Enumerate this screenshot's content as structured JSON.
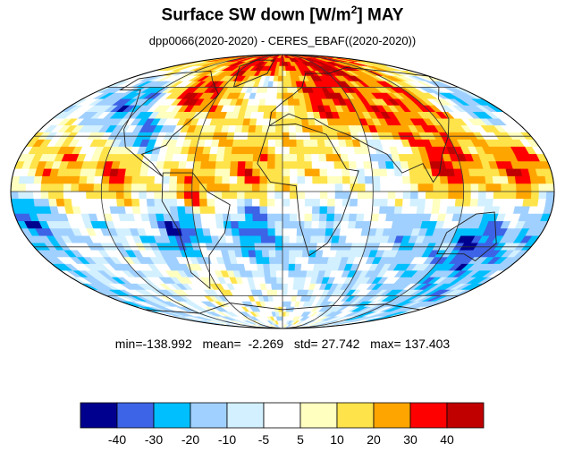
{
  "title": {
    "main": "Surface SW down [W/m",
    "sup": "2",
    "tail": "]  MAY"
  },
  "subtitle": "dpp0066(2020-2020) - CERES_EBAF((2020-2020))",
  "stats": {
    "min_label": "min=",
    "min": "-138.992",
    "mean_label": "mean=",
    "mean": "-2.269",
    "std_label": "std=",
    "std": "27.742",
    "max_label": "max=",
    "max": "137.403"
  },
  "chart_data": {
    "type": "heatmap",
    "projection": "mollweide",
    "variable": "Surface SW down difference",
    "units": "W/m2",
    "month": "MAY",
    "grid": true,
    "coastlines": true,
    "colorbar": {
      "ticks": [
        "-40",
        "-30",
        "-20",
        "-10",
        "-5",
        "5",
        "10",
        "20",
        "30",
        "40"
      ],
      "colors": [
        "#00008f",
        "#3d63e6",
        "#00bfff",
        "#a0d0ff",
        "#d2f0ff",
        "#ffffff",
        "#ffffc0",
        "#ffe34a",
        "#ffa500",
        "#ff0000",
        "#c00000"
      ]
    },
    "regions": [
      {
        "lon": -150,
        "lat": 10,
        "value": 25
      },
      {
        "lon": -110,
        "lat": 10,
        "value": 35
      },
      {
        "lon": -60,
        "lat": 0,
        "value": 30
      },
      {
        "lon": -20,
        "lat": 10,
        "value": 30
      },
      {
        "lon": 20,
        "lat": 15,
        "value": 10
      },
      {
        "lon": 70,
        "lat": 20,
        "value": -10
      },
      {
        "lon": 110,
        "lat": 15,
        "value": 40
      },
      {
        "lon": 160,
        "lat": 12,
        "value": 35
      },
      {
        "lon": -170,
        "lat": -15,
        "value": -30
      },
      {
        "lon": -120,
        "lat": -20,
        "value": -10
      },
      {
        "lon": -70,
        "lat": -20,
        "value": -40
      },
      {
        "lon": -20,
        "lat": -20,
        "value": -35
      },
      {
        "lon": 30,
        "lat": -20,
        "value": -15
      },
      {
        "lon": 90,
        "lat": -25,
        "value": -20
      },
      {
        "lon": 140,
        "lat": -30,
        "value": -40
      },
      {
        "lon": -130,
        "lat": 50,
        "value": -30
      },
      {
        "lon": -80,
        "lat": 55,
        "value": 40
      },
      {
        "lon": -20,
        "lat": 60,
        "value": -5
      },
      {
        "lon": 40,
        "lat": 55,
        "value": 40
      },
      {
        "lon": 110,
        "lat": 50,
        "value": 30
      },
      {
        "lon": 160,
        "lat": 50,
        "value": -20
      },
      {
        "lon": -100,
        "lat": 30,
        "value": -30
      },
      {
        "lon": 0,
        "lat": 40,
        "value": 10
      },
      {
        "lon": 80,
        "lat": 40,
        "value": 35
      },
      {
        "lon": -60,
        "lat": -50,
        "value": 5
      },
      {
        "lon": 60,
        "lat": -50,
        "value": -10
      },
      {
        "lon": 150,
        "lat": -55,
        "value": -20
      },
      {
        "lon": -40,
        "lat": 75,
        "value": 40
      },
      {
        "lon": 60,
        "lat": 75,
        "value": 45
      },
      {
        "lon": 0,
        "lat": -75,
        "value": 0
      }
    ]
  }
}
